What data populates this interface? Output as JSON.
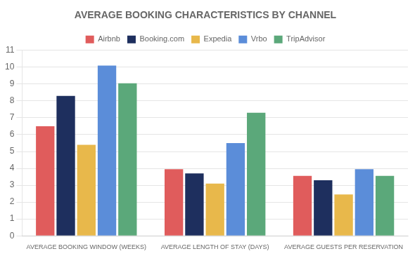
{
  "chart_data": {
    "type": "bar",
    "title": "AVERAGE BOOKING CHARACTERISTICS BY CHANNEL",
    "categories": [
      "AVERAGE BOOKING WINDOW (WEEKS)",
      "AVERAGE LENGTH OF STAY (DAYS)",
      "AVERAGE GUESTS PER RESERVATION"
    ],
    "series": [
      {
        "name": "Airbnb",
        "color": "#E05C5C",
        "values": [
          6.5,
          3.95,
          3.55
        ]
      },
      {
        "name": "Booking.com",
        "color": "#1E2F5E",
        "values": [
          8.3,
          3.7,
          3.3
        ]
      },
      {
        "name": "Expedia",
        "color": "#E8B84B",
        "values": [
          5.4,
          3.1,
          2.45
        ]
      },
      {
        "name": "Vrbo",
        "color": "#5B8DD9",
        "values": [
          10.1,
          5.5,
          3.95
        ]
      },
      {
        "name": "TripAdvisor",
        "color": "#5BA87A",
        "values": [
          9.05,
          7.3,
          3.55
        ]
      }
    ],
    "ylim": [
      0,
      11
    ],
    "yticks": [
      0,
      1,
      2,
      3,
      4,
      5,
      6,
      7,
      8,
      9,
      10,
      11
    ],
    "grid": true,
    "legend": "top"
  }
}
